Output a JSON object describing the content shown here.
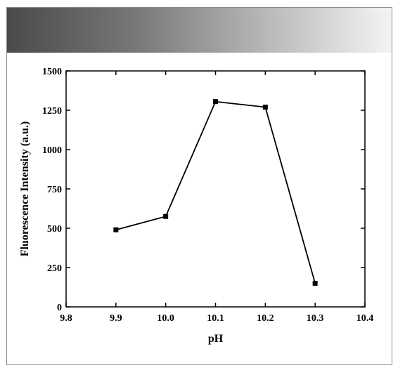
{
  "chart_data": {
    "type": "line",
    "title": "",
    "xlabel": "pH",
    "ylabel": "Fluorescence Intensity (a.u.)",
    "xlim": [
      9.8,
      10.4
    ],
    "ylim": [
      0,
      1500
    ],
    "x_ticks": [
      "9.8",
      "9.9",
      "10.0",
      "10.1",
      "10.2",
      "10.3",
      "10.4"
    ],
    "y_ticks": [
      "0",
      "250",
      "500",
      "750",
      "1000",
      "1250",
      "1500"
    ],
    "grid": false,
    "legend": "none",
    "marker": "square",
    "series": [
      {
        "x": [
          9.9,
          10.0,
          10.1,
          10.2,
          10.3
        ],
        "y": [
          490,
          575,
          1305,
          1270,
          150
        ]
      }
    ],
    "colors": {
      "line": "#000000",
      "marker": "#000000"
    }
  }
}
